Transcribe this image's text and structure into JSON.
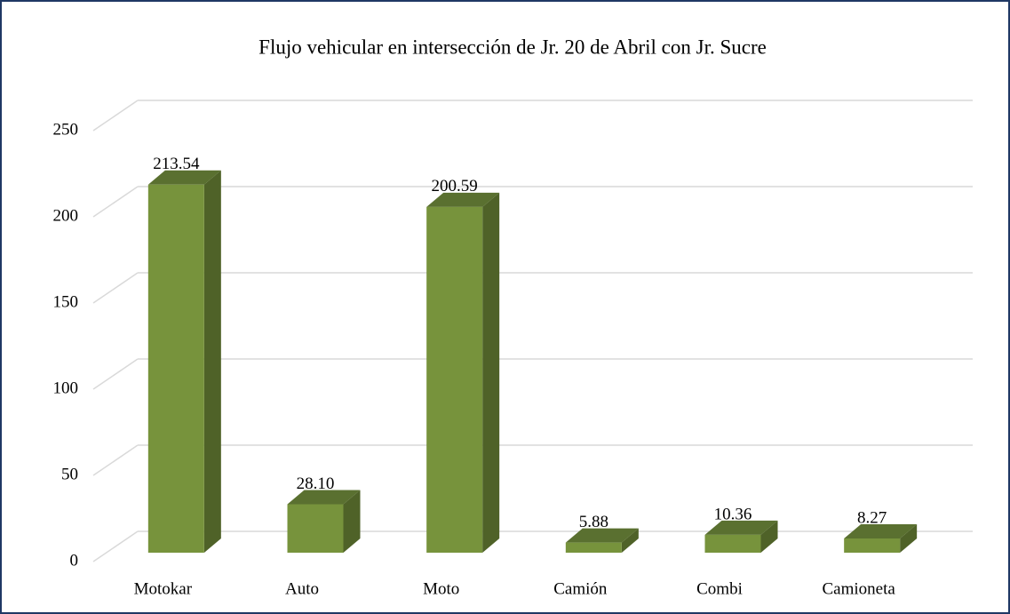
{
  "chart_data": {
    "type": "bar3d",
    "title": "Flujo vehicular en intersección de Jr. 20 de Abril con Jr. Sucre",
    "categories": [
      "Motokar",
      "Auto",
      "Moto",
      "Camión",
      "Combi",
      "Camioneta"
    ],
    "values": [
      213.54,
      28.1,
      200.59,
      5.88,
      10.36,
      8.27
    ],
    "value_labels": [
      "213.54",
      "28.10",
      "200.59",
      "5.88",
      "10.36",
      "8.27"
    ],
    "color": "#77933c",
    "ylim": [
      0,
      250
    ],
    "yticks": [
      0,
      50,
      100,
      150,
      200,
      250
    ],
    "grid": true
  }
}
